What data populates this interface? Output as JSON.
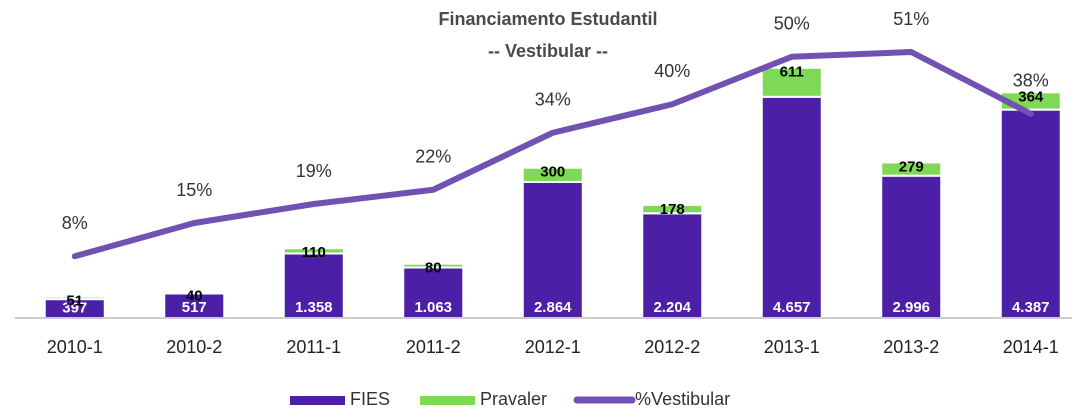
{
  "chart_data": {
    "type": "bar",
    "title": [
      "Financiamento Estudantil",
      "-- Vestibular --"
    ],
    "categories": [
      "2010-1",
      "2010-2",
      "2011-1",
      "2011-2",
      "2012-1",
      "2012-2",
      "2013-1",
      "2013-2",
      "2014-1"
    ],
    "stacked": true,
    "series": [
      {
        "name": "FIES",
        "color": "#4b1fa6",
        "values": [
          397,
          517,
          1358,
          1063,
          2864,
          2204,
          4657,
          2996,
          4387
        ],
        "value_labels": [
          "397",
          "517",
          "1.358",
          "1.063",
          "2.864",
          "2.204",
          "4.657",
          "2.996",
          "4.387"
        ]
      },
      {
        "name": "Pravaler",
        "color": "#7ed957",
        "values": [
          51,
          40,
          110,
          80,
          300,
          178,
          611,
          279,
          364
        ]
      },
      {
        "name": "%Vestibular",
        "color": "#7152b3",
        "type": "line",
        "axis": "y2",
        "values": [
          8,
          15,
          19,
          22,
          34,
          40,
          50,
          51,
          38
        ],
        "value_labels": [
          "8%",
          "15%",
          "19%",
          "22%",
          "34%",
          "40%",
          "50%",
          "51%",
          "38%"
        ]
      }
    ],
    "ylim": [
      0,
      6000
    ],
    "y2lim": [
      -5,
      55
    ],
    "legend": "bottom"
  }
}
